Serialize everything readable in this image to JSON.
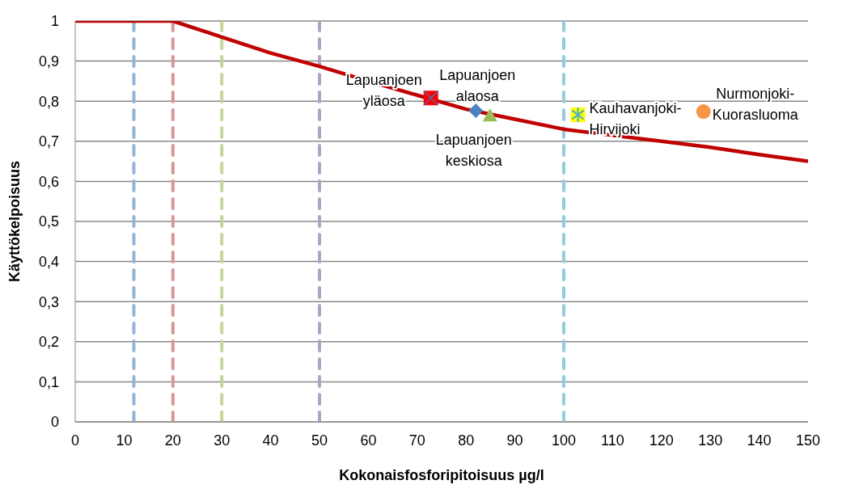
{
  "chart_data": {
    "type": "scatter",
    "xlabel": "Kokonaisfosforipitoisuus µg/l",
    "ylabel": "Käyttökelpoisuus",
    "xlim": [
      0,
      150
    ],
    "xticks": [
      0,
      10,
      20,
      30,
      40,
      50,
      60,
      70,
      80,
      90,
      100,
      110,
      120,
      130,
      140,
      150
    ],
    "ylim": [
      0,
      1
    ],
    "yticks": [
      0,
      {
        "value": 0.1,
        "label": "0,1"
      },
      {
        "value": 0.2,
        "label": "0,2"
      },
      {
        "value": 0.3,
        "label": "0,3"
      },
      {
        "value": 0.4,
        "label": "0,4"
      },
      {
        "value": 0.5,
        "label": "0,5"
      },
      {
        "value": 0.6,
        "label": "0,6"
      },
      {
        "value": 0.7,
        "label": "0,7"
      },
      {
        "value": 0.8,
        "label": "0,8"
      },
      {
        "value": 0.9,
        "label": "0,9"
      },
      1
    ],
    "grid": "y",
    "legend": false,
    "series": [
      {
        "type": "line",
        "color": "#c00000",
        "marker": "none",
        "line_style": "solid",
        "x": [
          0,
          20,
          30,
          40,
          50,
          60,
          70,
          80,
          90,
          100,
          110,
          120,
          130,
          140,
          150
        ],
        "values": [
          1,
          1,
          0.96,
          0.92,
          0.887,
          0.85,
          0.815,
          0.78,
          0.755,
          0.73,
          0.715,
          0.7,
          0.685,
          0.667,
          0.65
        ]
      },
      {
        "name": "Lapuanjoen yläosa",
        "color": "#ff0000",
        "marker": "square",
        "x": [
          72.8
        ],
        "values": [
          0.808
        ]
      },
      {
        "name": "Lapuanjoen alaosa",
        "color": "#4f81bd",
        "marker": "diamond",
        "x": [
          82
        ],
        "values": [
          0.776
        ]
      },
      {
        "name": "Lapuanjoen keskiosa",
        "color": "#9bbb59",
        "marker": "triangle",
        "x": [
          84.9
        ],
        "values": [
          0.764
        ]
      },
      {
        "name": "Kauhavanjoki-Hirvijoki",
        "color": "#ffff00",
        "marker": "square",
        "x": [
          102.9
        ],
        "values": [
          0.766
        ]
      },
      {
        "name": "Nurmonjoki-Kuorasluoma",
        "color": "#f79646",
        "marker": "circle",
        "x": [
          128.6
        ],
        "values": [
          0.774
        ]
      }
    ],
    "ref_lines": [
      {
        "axis": "x",
        "value": 12,
        "color": "#95b3d7",
        "line_style": "dashed"
      },
      {
        "axis": "x",
        "value": 20,
        "color": "#d99694",
        "line_style": "dashed"
      },
      {
        "axis": "x",
        "value": 30,
        "color": "#c3d69b",
        "line_style": "dashed"
      },
      {
        "axis": "x",
        "value": 50,
        "color": "#b3a2c7",
        "line_style": "dashed"
      },
      {
        "axis": "x",
        "value": 100,
        "color": "#93cddd",
        "line_style": "dashed"
      }
    ]
  }
}
